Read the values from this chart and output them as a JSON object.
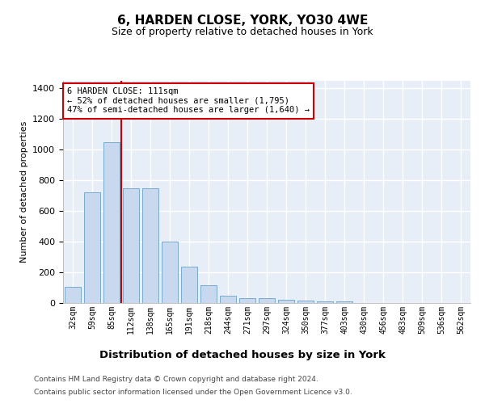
{
  "title1": "6, HARDEN CLOSE, YORK, YO30 4WE",
  "title2": "Size of property relative to detached houses in York",
  "xlabel": "Distribution of detached houses by size in York",
  "ylabel": "Number of detached properties",
  "categories": [
    "32sqm",
    "59sqm",
    "85sqm",
    "112sqm",
    "138sqm",
    "165sqm",
    "191sqm",
    "218sqm",
    "244sqm",
    "271sqm",
    "297sqm",
    "324sqm",
    "350sqm",
    "377sqm",
    "403sqm",
    "430sqm",
    "456sqm",
    "483sqm",
    "509sqm",
    "536sqm",
    "562sqm"
  ],
  "values": [
    105,
    720,
    1050,
    750,
    750,
    400,
    235,
    115,
    45,
    30,
    30,
    20,
    15,
    10,
    10,
    0,
    0,
    0,
    0,
    0,
    0
  ],
  "bar_color": "#c8d8ee",
  "bar_edge_color": "#7aabcc",
  "red_line_x": 2.5,
  "annotation_line1": "6 HARDEN CLOSE: 111sqm",
  "annotation_line2": "← 52% of detached houses are smaller (1,795)",
  "annotation_line3": "47% of semi-detached houses are larger (1,640) →",
  "annotation_box_facecolor": "#ffffff",
  "annotation_box_edgecolor": "#cc0000",
  "ylim": [
    0,
    1450
  ],
  "yticks": [
    0,
    200,
    400,
    600,
    800,
    1000,
    1200,
    1400
  ],
  "footer1": "Contains HM Land Registry data © Crown copyright and database right 2024.",
  "footer2": "Contains public sector information licensed under the Open Government Licence v3.0.",
  "fig_bg_color": "#ffffff",
  "plot_bg_color": "#e8eef8",
  "grid_color": "#ffffff",
  "title1_fontsize": 11,
  "title2_fontsize": 9,
  "annot_fontsize": 7.5,
  "tick_fontsize": 7,
  "ylabel_fontsize": 8,
  "xlabel_fontsize": 9.5,
  "footer_fontsize": 6.5
}
